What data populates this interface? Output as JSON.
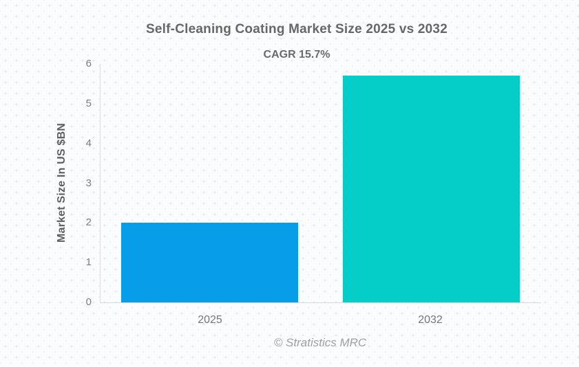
{
  "chart_data": {
    "type": "bar",
    "title": "Self-Cleaning Coating Market Size 2025 vs 2032",
    "subtitle": "CAGR 15.7%",
    "categories": [
      "2025",
      "2032"
    ],
    "values": [
      2.0,
      5.7
    ],
    "xlabel": "",
    "ylabel": "Market Size In US $BN",
    "ylim": [
      0,
      6
    ],
    "yticks": [
      0,
      1,
      2,
      3,
      4,
      5,
      6
    ],
    "grid": false,
    "legend": "none",
    "bar_colors": [
      "#089de9",
      "#05cdc7"
    ],
    "source": "© Stratistics MRC"
  }
}
